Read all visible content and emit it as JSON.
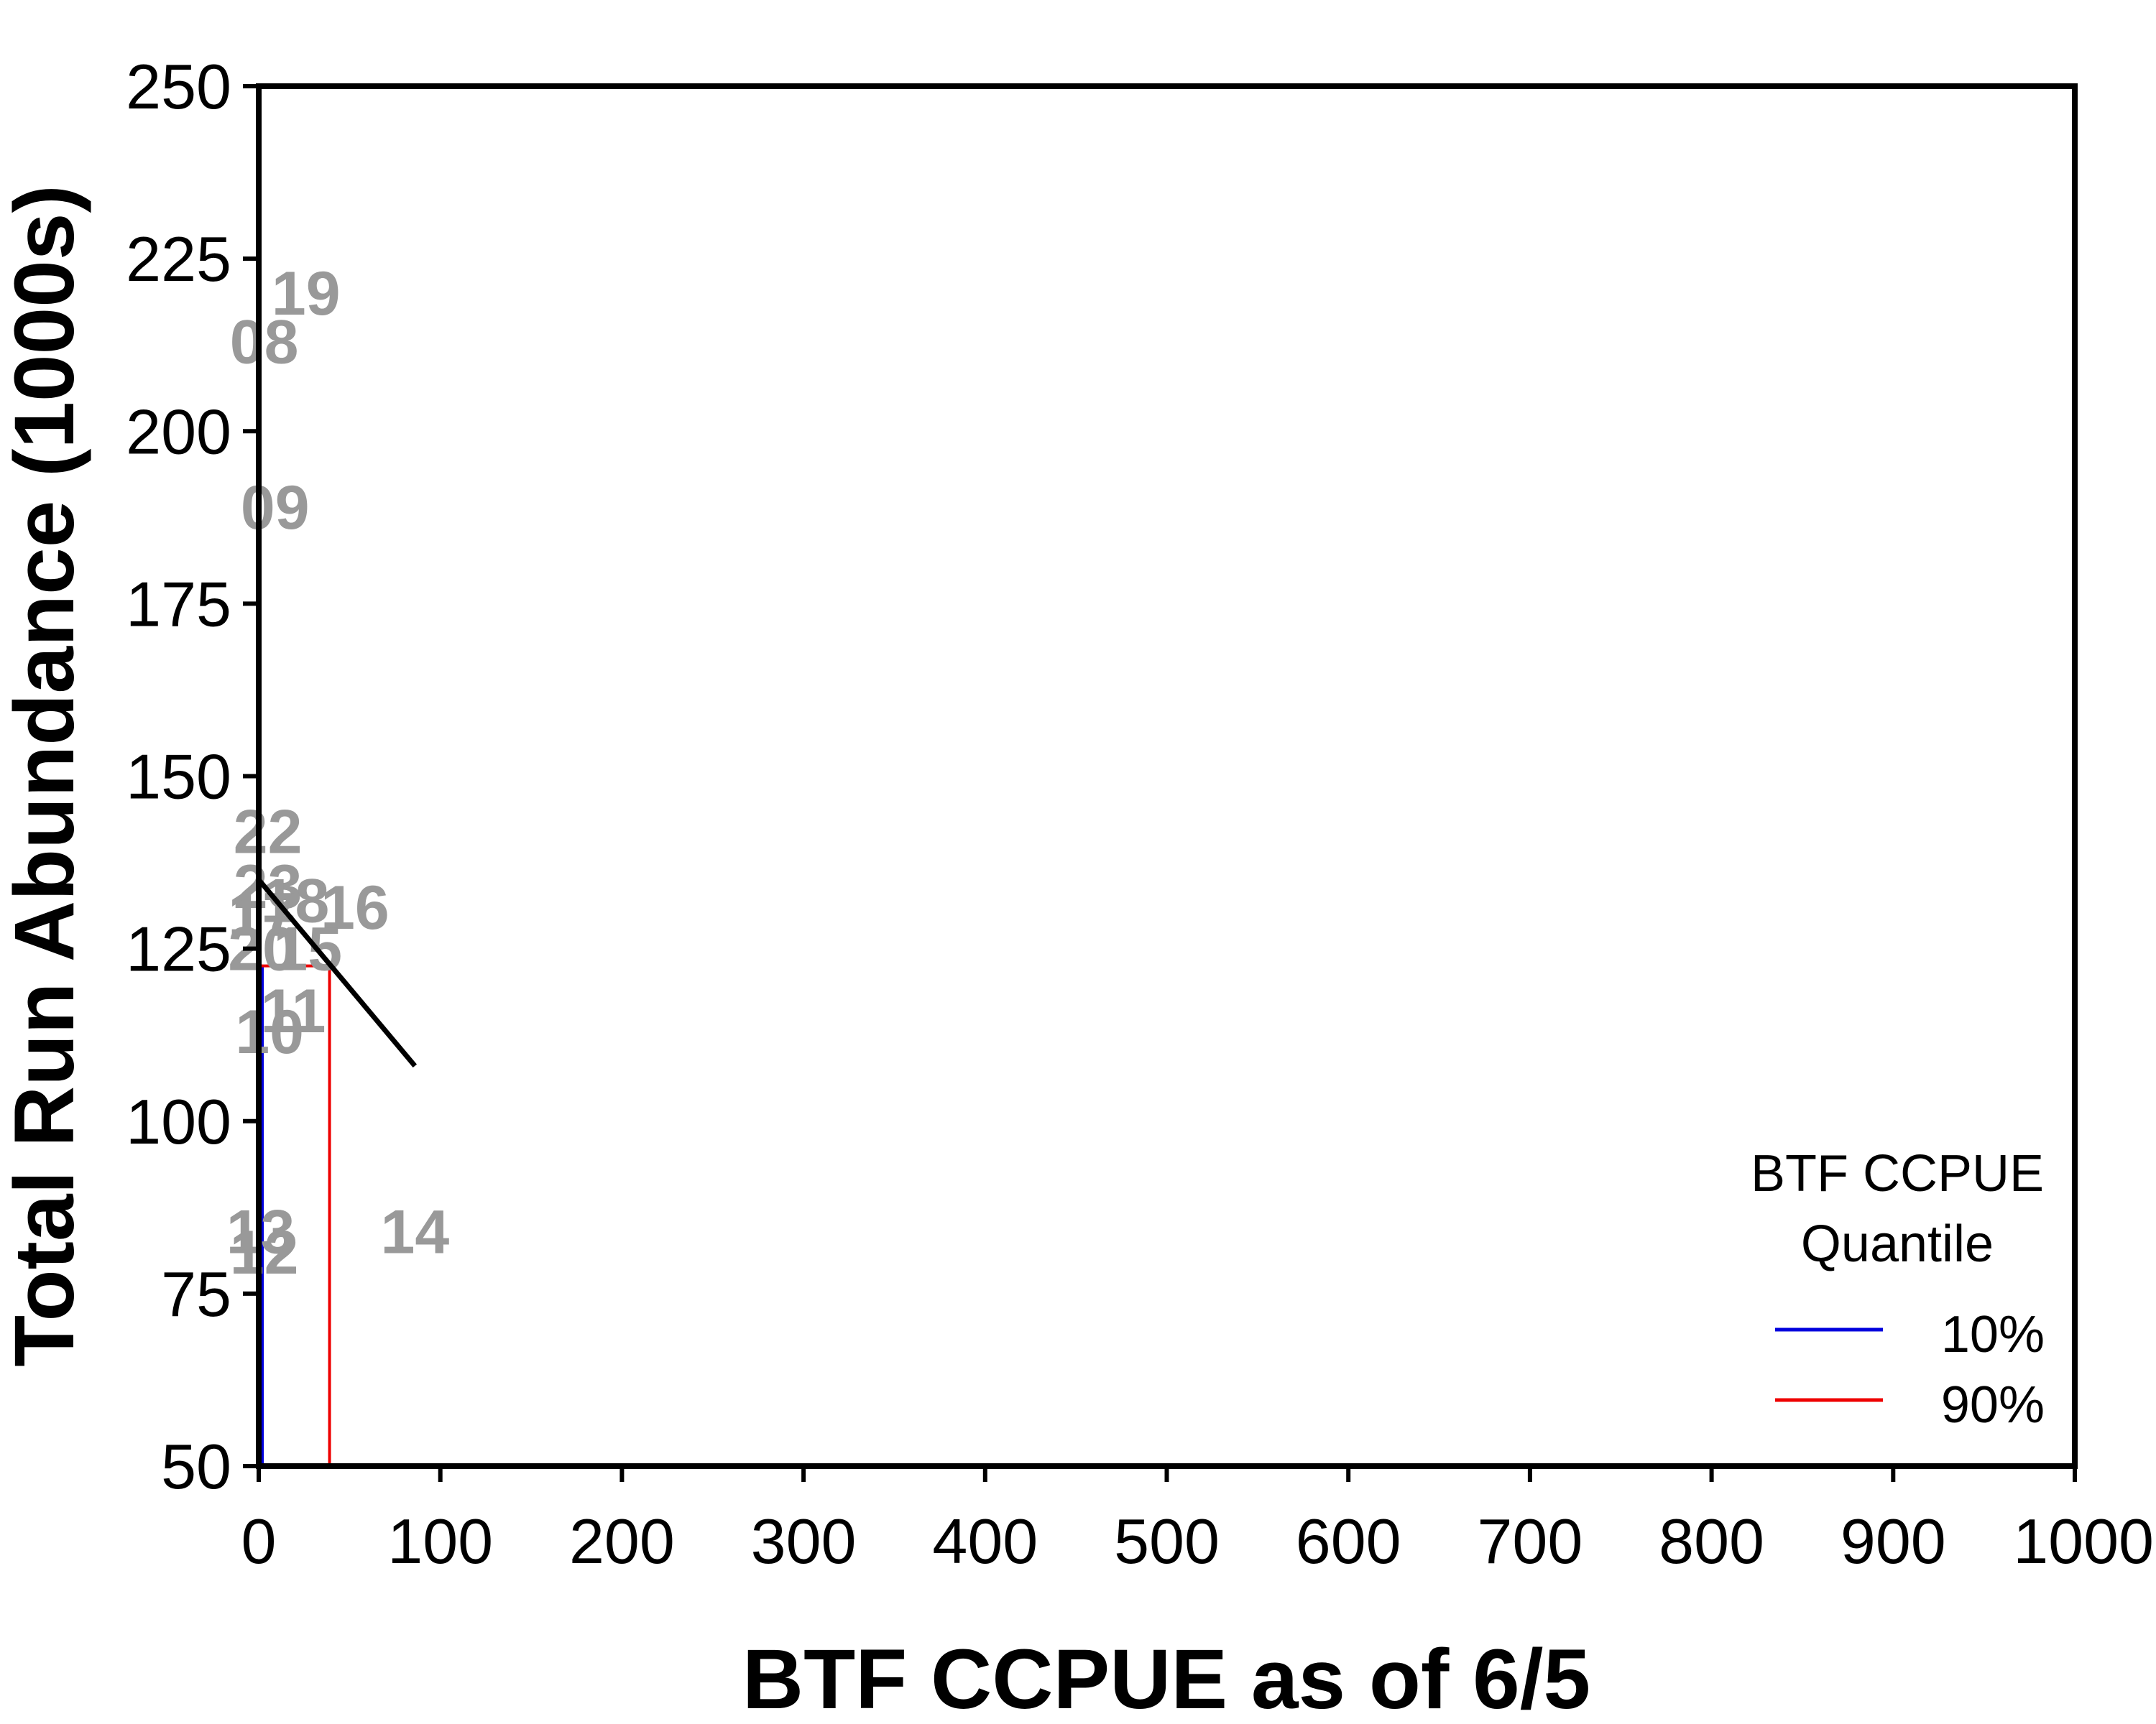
{
  "chart_data": {
    "type": "scatter",
    "title": "",
    "xlabel": "BTF CCPUE as of 6/5",
    "ylabel": "Total Run Abundance (1000s)",
    "xlim": [
      0,
      1000
    ],
    "ylim": [
      50,
      250
    ],
    "x_ticks": [
      0,
      100,
      200,
      300,
      400,
      500,
      600,
      700,
      800,
      900,
      1000
    ],
    "y_ticks": [
      50,
      75,
      100,
      125,
      150,
      175,
      200,
      225,
      250
    ],
    "grid": false,
    "point_color": "#999999",
    "points": [
      {
        "label": "19",
        "x": 26,
        "y": 220
      },
      {
        "label": "08",
        "x": 3,
        "y": 213
      },
      {
        "label": "09",
        "x": 9,
        "y": 189
      },
      {
        "label": "22",
        "x": 5,
        "y": 142
      },
      {
        "label": "23",
        "x": 5,
        "y": 134
      },
      {
        "label": "18",
        "x": 20,
        "y": 132
      },
      {
        "label": "16",
        "x": 53,
        "y": 131
      },
      {
        "label": "17",
        "x": 2,
        "y": 130
      },
      {
        "label": "20",
        "x": 2,
        "y": 125
      },
      {
        "label": "15",
        "x": 27,
        "y": 125
      },
      {
        "label": "11",
        "x": 19,
        "y": 116
      },
      {
        "label": "10",
        "x": 6,
        "y": 113
      },
      {
        "label": "13",
        "x": 1,
        "y": 84
      },
      {
        "label": "12",
        "x": 3,
        "y": 81
      },
      {
        "label": "14",
        "x": 86,
        "y": 84
      }
    ],
    "fit_line": {
      "color": "#000000",
      "x": [
        0,
        86
      ],
      "y": [
        135,
        108
      ]
    },
    "quantiles": [
      {
        "name": "10%",
        "color": "#0000dd",
        "x": 2,
        "y": 122.5
      },
      {
        "name": "90%",
        "color": "#ee0000",
        "x": 39,
        "y": 122.5
      }
    ],
    "legend": {
      "title_line1": "BTF CCPUE",
      "title_line2": "Quantile",
      "position": "bottom-right"
    }
  }
}
